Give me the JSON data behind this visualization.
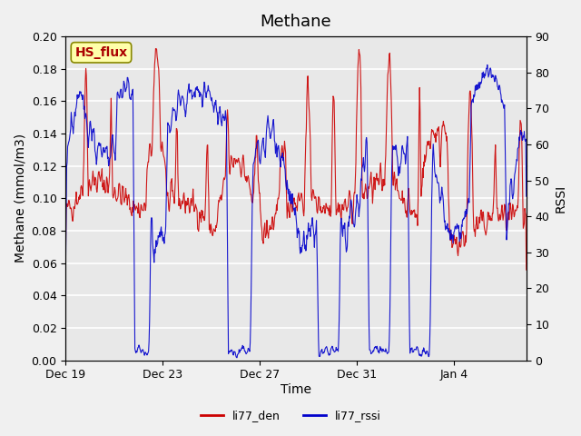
{
  "title": "Methane",
  "ylabel_left": "Methane (mmol/m3)",
  "ylabel_right": "RSSI",
  "xlabel": "Time",
  "ylim_left": [
    0.0,
    0.2
  ],
  "ylim_right": [
    0,
    90
  ],
  "yticks_left": [
    0.0,
    0.02,
    0.04,
    0.06,
    0.08,
    0.1,
    0.12,
    0.14,
    0.16,
    0.18,
    0.2
  ],
  "yticks_right": [
    0,
    10,
    20,
    30,
    40,
    50,
    60,
    70,
    80,
    90
  ],
  "xtick_labels": [
    "Dec 19",
    "Dec 23",
    "Dec 27",
    "Dec 31",
    "Jan 4"
  ],
  "color_den": "#cc0000",
  "color_rssi": "#0000cc",
  "legend_labels": [
    "li77_den",
    "li77_rssi"
  ],
  "box_label": "HS_flux",
  "box_bg": "#ffffaa",
  "box_text_color": "#aa0000",
  "bg_color": "#e8e8e8",
  "plot_bg": "#e8e8e8",
  "grid_color": "#ffffff",
  "title_fontsize": 13,
  "axis_fontsize": 10,
  "tick_fontsize": 9
}
